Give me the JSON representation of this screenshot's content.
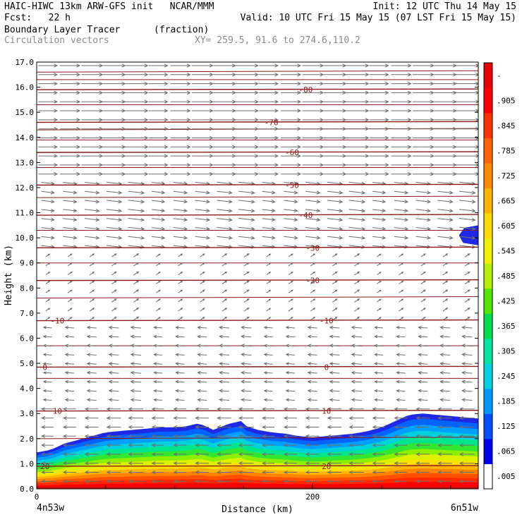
{
  "header": {
    "line1_left": "HAIC-HIWC 13km ARW-GFS init   NCAR/MMM",
    "line1_right": "Init: 12 UTC Thu 14 May 15",
    "line2_left": "Fcst:   22 h",
    "line2_right": "Valid: 10 UTC Fri 15 May 15 (07 LST Fri 15 May 15)",
    "line3_field": "Boundary Layer Tracer",
    "line3_unit": "(fraction)",
    "line4_field": "Circulation vectors",
    "line4_coords": "XY= 259.5, 91.6 to 274.6,110.2"
  },
  "chart_data": {
    "type": "heatmap",
    "xlabel": "Distance (km)",
    "ylabel": "Height (km)",
    "xlim": [
      0,
      320
    ],
    "ylim": [
      0,
      17
    ],
    "x_ticks": [
      0,
      200
    ],
    "x_tick_labels": [
      "0",
      "200"
    ],
    "x_end_labels": {
      "left": "4n53w",
      "right": "6n51w"
    },
    "y_ticks": [
      0,
      1,
      2,
      3,
      4,
      5,
      6,
      7,
      8,
      9,
      10,
      11,
      12,
      13,
      14,
      15,
      16,
      17
    ],
    "y_tick_labels": [
      "0.0",
      "1.0",
      "2.0",
      "3.0",
      "4.0",
      "5.0",
      "6.0",
      "7.0",
      "8.0",
      "9.0",
      "10.0",
      "11.0",
      "12.0",
      "13.0",
      "14.0",
      "15.0",
      "16.0",
      "17.0"
    ],
    "colorbar": {
      "labels": [
        ".005",
        ".065",
        ".125",
        ".185",
        ".245",
        ".305",
        ".365",
        ".425",
        ".485",
        ".545",
        ".605",
        ".665",
        ".725",
        ".785",
        ".845",
        ".905",
        "-"
      ],
      "colors": [
        "#ffffff",
        "#0000ee",
        "#0050ff",
        "#0096ff",
        "#00d2e6",
        "#00e6a0",
        "#00dc50",
        "#50e600",
        "#b4f000",
        "#f0f000",
        "#ffdc00",
        "#ffb400",
        "#ff8c00",
        "#ff6400",
        "#ff3200",
        "#ff0000",
        "#e60000"
      ]
    },
    "tracer_top_km": [
      [
        0,
        1.45
      ],
      [
        10,
        1.55
      ],
      [
        20,
        1.8
      ],
      [
        30,
        1.95
      ],
      [
        40,
        2.1
      ],
      [
        50,
        2.25
      ],
      [
        60,
        2.3
      ],
      [
        70,
        2.35
      ],
      [
        80,
        2.4
      ],
      [
        90,
        2.45
      ],
      [
        100,
        2.45
      ],
      [
        110,
        2.5
      ],
      [
        115,
        2.6
      ],
      [
        120,
        2.55
      ],
      [
        128,
        2.35
      ],
      [
        135,
        2.5
      ],
      [
        140,
        2.6
      ],
      [
        148,
        2.7
      ],
      [
        152,
        2.5
      ],
      [
        160,
        2.35
      ],
      [
        170,
        2.25
      ],
      [
        180,
        2.2
      ],
      [
        190,
        2.1
      ],
      [
        200,
        2.05
      ],
      [
        210,
        2.1
      ],
      [
        220,
        2.15
      ],
      [
        230,
        2.2
      ],
      [
        240,
        2.3
      ],
      [
        250,
        2.45
      ],
      [
        260,
        2.7
      ],
      [
        270,
        2.95
      ],
      [
        280,
        3.0
      ],
      [
        290,
        2.95
      ],
      [
        300,
        2.9
      ],
      [
        320,
        2.8
      ]
    ],
    "tracer_cloud_upper": {
      "x_range": [
        306,
        320
      ],
      "z_range": [
        9.8,
        10.5
      ]
    },
    "temperature_contours": [
      {
        "label": "-80",
        "z": 15.9,
        "label_x": 195
      },
      {
        "label": "-70",
        "z": 14.6,
        "label_x": 170
      },
      {
        "label": "-60",
        "z": 13.4,
        "label_x": 185
      },
      {
        "label": "-50",
        "z": 12.1,
        "label_x": 185
      },
      {
        "label": "-40",
        "z": 10.9,
        "label_x": 195
      },
      {
        "label": "-30",
        "z": 9.6,
        "label_x": 200
      },
      {
        "label": "-20",
        "z": 8.3,
        "label_x": 200
      },
      {
        "label": "-10",
        "z": 6.7,
        "label_x": [
          15,
          210
        ]
      },
      {
        "label": "0",
        "z": 4.85,
        "label_x": [
          6,
          210
        ]
      },
      {
        "label": "10",
        "z": 3.1,
        "label_x": [
          15,
          210
        ]
      },
      {
        "label": "20",
        "z": 0.9,
        "label_x": [
          6,
          210
        ]
      }
    ],
    "extra_levels_km": [
      16.6,
      16.3,
      15.3,
      14.3,
      13.9,
      12.8,
      11.6,
      10.3,
      9.0,
      7.6,
      5.7,
      4.4,
      2.0,
      0.05
    ],
    "wind_vectors": [
      {
        "z_range": [
          12.5,
          17
        ],
        "u": 1.0,
        "w": 0.0,
        "len_km": 16
      },
      {
        "z_range": [
          9.5,
          12.5
        ],
        "u": 0.9,
        "w": -0.1,
        "len_km": 11
      },
      {
        "z_range": [
          6.5,
          9.5
        ],
        "u": 0.3,
        "w": 0.2,
        "len_km": 4
      },
      {
        "z_range": [
          3.5,
          6.5
        ],
        "u": -0.7,
        "w": 0.05,
        "len_km": 7
      },
      {
        "z_range": [
          0,
          3.5
        ],
        "u": -1.0,
        "w": 0.0,
        "len_km": 10
      }
    ]
  }
}
